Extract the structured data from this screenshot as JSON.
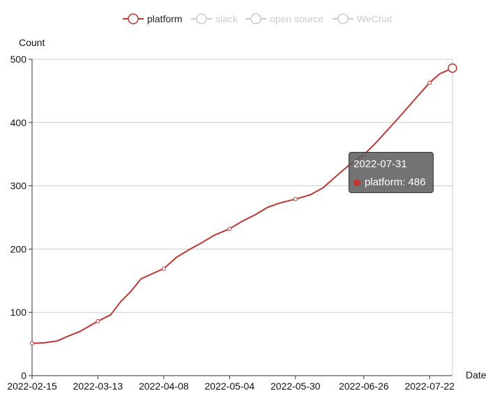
{
  "chart_data": {
    "type": "line",
    "xlabel": "Date",
    "ylabel": "Count",
    "x_range": [
      "2022-02-15",
      "2022-07-31"
    ],
    "ylim": [
      0,
      500
    ],
    "y_ticks": [
      0,
      100,
      200,
      300,
      400,
      500
    ],
    "x_ticks": [
      "2022-02-15",
      "2022-03-13",
      "2022-04-08",
      "2022-05-04",
      "2022-05-30",
      "2022-06-26",
      "2022-07-22"
    ],
    "grid": true,
    "legend_position": "top-center",
    "legend": [
      {
        "name": "platform",
        "active": true,
        "color": "#c23531"
      },
      {
        "name": "slack",
        "active": false,
        "color": "#cccccc"
      },
      {
        "name": "open source",
        "active": false,
        "color": "#cccccc"
      },
      {
        "name": "WeChat",
        "active": false,
        "color": "#cccccc"
      }
    ],
    "series": [
      {
        "name": "platform",
        "color": "#c23531",
        "x": [
          "2022-02-15",
          "2022-02-20",
          "2022-02-25",
          "2022-03-01",
          "2022-03-06",
          "2022-03-13",
          "2022-03-18",
          "2022-03-22",
          "2022-03-26",
          "2022-03-30",
          "2022-04-04",
          "2022-04-08",
          "2022-04-13",
          "2022-04-18",
          "2022-04-23",
          "2022-04-28",
          "2022-05-04",
          "2022-05-09",
          "2022-05-14",
          "2022-05-19",
          "2022-05-24",
          "2022-05-30",
          "2022-06-05",
          "2022-06-10",
          "2022-06-15",
          "2022-06-20",
          "2022-06-26",
          "2022-07-01",
          "2022-07-06",
          "2022-07-11",
          "2022-07-16",
          "2022-07-22",
          "2022-07-26",
          "2022-07-31"
        ],
        "values": [
          51,
          52,
          55,
          62,
          70,
          86,
          96,
          117,
          133,
          153,
          162,
          169,
          187,
          199,
          210,
          222,
          232,
          244,
          254,
          266,
          273,
          279,
          286,
          297,
          315,
          332,
          349,
          369,
          391,
          413,
          436,
          463,
          477,
          486
        ]
      }
    ],
    "tooltip": {
      "date": "2022-07-31",
      "series": "platform",
      "value": 486
    }
  }
}
